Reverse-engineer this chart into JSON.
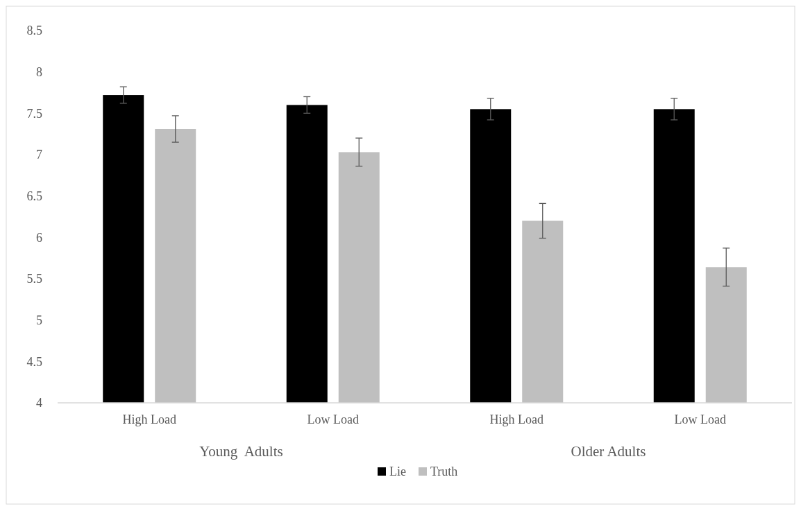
{
  "chart_data": {
    "type": "bar",
    "categories": [
      "High Load",
      "Low Load",
      "High Load",
      "Low Load"
    ],
    "series": [
      {
        "name": "Lie",
        "color": "#000000",
        "values": [
          7.72,
          7.6,
          7.55,
          7.55
        ],
        "errors": [
          0.1,
          0.1,
          0.13,
          0.13
        ]
      },
      {
        "name": "Truth",
        "color": "#bfbfbf",
        "values": [
          7.31,
          7.03,
          6.2,
          5.64
        ],
        "errors": [
          0.16,
          0.17,
          0.21,
          0.23
        ]
      }
    ],
    "annotations": [
      "Young  Adults",
      "Older Adults"
    ],
    "ylim": [
      4,
      8.5
    ],
    "yticks": [
      4,
      4.5,
      5,
      5.5,
      6,
      6.5,
      7,
      7.5,
      8,
      8.5
    ],
    "grid": false,
    "legend": "bottom"
  }
}
